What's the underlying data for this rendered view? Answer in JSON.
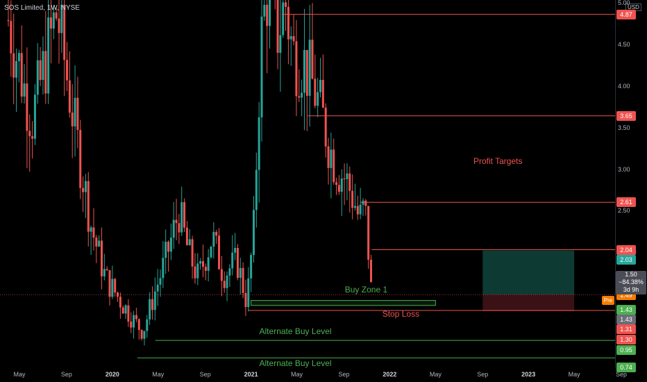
{
  "header": {
    "symbol": "SOS Limited, 1W, NYSE",
    "currency": "USD"
  },
  "colors": {
    "up": "#26a69a",
    "down": "#ef5350",
    "target_line": "#ef5350",
    "buy_line": "#4caf50",
    "profit_zone": "#0d3b34",
    "loss_zone": "#3a1114"
  },
  "chart_data": {
    "type": "candlestick",
    "title": "SOS Limited, 1W, NYSE",
    "ylim": [
      0.6,
      5.0
    ],
    "y_ticks": [
      "5.00",
      "4.50",
      "4.00",
      "3.50",
      "3.00",
      "2.50"
    ],
    "x_ticks": [
      {
        "label": "May",
        "t": 2019.33,
        "bold": false
      },
      {
        "label": "Sep",
        "t": 2019.67,
        "bold": false
      },
      {
        "label": "2020",
        "t": 2020.0,
        "bold": true
      },
      {
        "label": "May",
        "t": 2020.33,
        "bold": false
      },
      {
        "label": "Sep",
        "t": 2020.67,
        "bold": false
      },
      {
        "label": "2021",
        "t": 2021.0,
        "bold": true
      },
      {
        "label": "May",
        "t": 2021.33,
        "bold": false
      },
      {
        "label": "Sep",
        "t": 2021.67,
        "bold": false
      },
      {
        "label": "2022",
        "t": 2022.0,
        "bold": true
      },
      {
        "label": "May",
        "t": 2022.33,
        "bold": false
      },
      {
        "label": "Sep",
        "t": 2022.67,
        "bold": false
      },
      {
        "label": "2023",
        "t": 2023.0,
        "bold": true
      },
      {
        "label": "May",
        "t": 2023.33,
        "bold": false
      },
      {
        "label": "Sep",
        "t": 2023.67,
        "bold": false
      }
    ],
    "anchors": [
      [
        2019.25,
        4.8
      ],
      [
        2019.42,
        3.6
      ],
      [
        2019.6,
        4.9
      ],
      [
        2019.75,
        3.3
      ],
      [
        2019.85,
        2.3
      ],
      [
        2019.95,
        1.7
      ],
      [
        2020.05,
        1.45
      ],
      [
        2020.15,
        1.2
      ],
      [
        2020.22,
        1.05
      ],
      [
        2020.3,
        1.5
      ],
      [
        2020.38,
        1.9
      ],
      [
        2020.48,
        2.5
      ],
      [
        2020.55,
        2.0
      ],
      [
        2020.62,
        1.7
      ],
      [
        2020.72,
        2.2
      ],
      [
        2020.8,
        1.75
      ],
      [
        2020.9,
        1.9
      ],
      [
        2020.97,
        1.4
      ],
      [
        2021.02,
        2.3
      ],
      [
        2021.07,
        4.5
      ],
      [
        2021.12,
        5.2
      ],
      [
        2021.18,
        4.6
      ],
      [
        2021.25,
        5.0
      ],
      [
        2021.3,
        4.4
      ],
      [
        2021.38,
        4.3
      ],
      [
        2021.45,
        4.0
      ],
      [
        2021.52,
        3.6
      ],
      [
        2021.58,
        3.2
      ],
      [
        2021.63,
        3.0
      ],
      [
        2021.68,
        2.9
      ],
      [
        2021.74,
        2.65
      ],
      [
        2021.78,
        2.4
      ],
      [
        2021.82,
        2.55
      ],
      [
        2021.84,
        2.2
      ],
      [
        2021.86,
        1.6
      ],
      [
        2021.88,
        1.5
      ]
    ],
    "h_levels": [
      {
        "price": 4.87,
        "label": "4.87",
        "kind": "target",
        "t_start": 2021.22
      },
      {
        "price": 3.65,
        "label": "3.65",
        "kind": "target",
        "t_start": 2021.41
      },
      {
        "price": 2.61,
        "label": "2.61",
        "kind": "target",
        "t_start": 2021.79
      },
      {
        "price": 2.04,
        "label": "2.04",
        "kind": "target",
        "t_start": 2021.87
      },
      {
        "price": 1.31,
        "label": "1.31",
        "kind": "stop",
        "t_start": 2020.98
      },
      {
        "price": 0.95,
        "label": "0.95",
        "kind": "buy",
        "t_start": 2020.31
      },
      {
        "price": 0.74,
        "label": "0.74",
        "kind": "buy",
        "t_start": 2020.18
      }
    ],
    "buy_zone_box": {
      "t_start": 2021.0,
      "t_end": 2022.33,
      "top": 1.43,
      "bottom": 1.37
    },
    "position_box": {
      "t_start": 2022.67,
      "t_end": 2023.33,
      "target": 2.03,
      "entry": 1.5,
      "stop": 1.3
    },
    "price_labels": [
      {
        "price": 4.87,
        "label": "4.87",
        "color": "#ef5350"
      },
      {
        "price": 3.65,
        "label": "3.65",
        "color": "#ef5350"
      },
      {
        "price": 2.61,
        "label": "2.61",
        "color": "#ef5350"
      },
      {
        "price": 2.04,
        "label": "2.04",
        "color": "#ef5350"
      },
      {
        "price": 2.03,
        "label": "2.03",
        "color": "#26a69a"
      },
      {
        "price": 1.49,
        "label": "1.49",
        "color": "#f57c00"
      },
      {
        "price": 1.43,
        "label": "1.43",
        "color": "#4caf50"
      },
      {
        "price": 1.43,
        "label": "1.43",
        "color": "#6a6d78"
      },
      {
        "price": 1.31,
        "label": "1.31",
        "color": "#ef5350"
      },
      {
        "price": 1.3,
        "label": "1.30",
        "color": "#ef5350"
      },
      {
        "price": 0.95,
        "label": "0.95",
        "color": "#4caf50"
      },
      {
        "price": 0.74,
        "label": "0.74",
        "color": "#4caf50"
      }
    ],
    "last_price": {
      "value": "1.50",
      "change": "−84.38%",
      "countdown": "3d 9h",
      "pre_tag": "Pre"
    },
    "annotations": [
      {
        "text": "Profit Targets",
        "color": "#ef5350",
        "t": 2022.78,
        "price": 3.1
      },
      {
        "text": "Buy Zone 1",
        "color": "#4caf50",
        "t": 2021.83,
        "price": 1.55
      },
      {
        "text": "Stop Loss",
        "color": "#ef5350",
        "t": 2022.08,
        "price": 1.26
      },
      {
        "text": "Alternate Buy Level",
        "color": "#4caf50",
        "t": 2021.32,
        "price": 1.05
      },
      {
        "text": "Alternate Buy Level",
        "color": "#4caf50",
        "t": 2021.32,
        "price": 0.67
      }
    ]
  }
}
